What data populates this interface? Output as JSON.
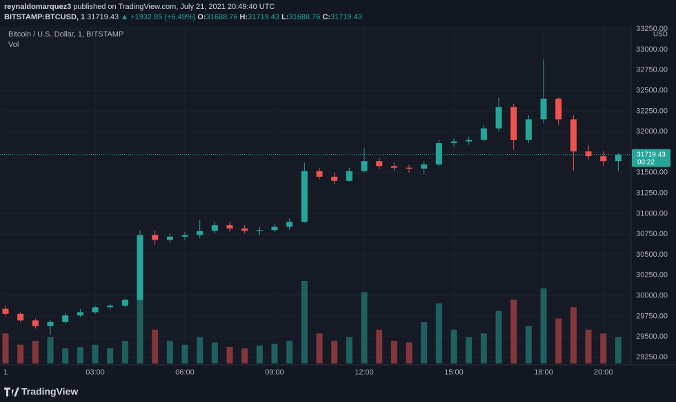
{
  "header": {
    "author": "reynaldomarquez3",
    "published": "published on TradingView.com, July 21, 2021 20:49:40 UTC",
    "logo": "TradingView"
  },
  "quote": {
    "symbol": "BITSTAMP:BTCUSD, 1",
    "price": "31719.43",
    "change": "▲ +1932.85 (+6.49%)",
    "fields": [
      {
        "label": "O:",
        "value": "31688.76"
      },
      {
        "label": "H:",
        "value": "31719.43"
      },
      {
        "label": "L:",
        "value": "31688.76"
      },
      {
        "label": "C:",
        "value": "31719.43"
      }
    ]
  },
  "chart_data": {
    "type": "candlestick",
    "title": "Bitcoin / U.S. Dollar, 1, BITSTAMP",
    "volume_label": "Vol",
    "y_unit": "USD",
    "last_price": 31719.43,
    "countdown": "00:22",
    "up_color": "#26a69a",
    "down_color": "#ef5350",
    "grid": true,
    "x": [
      0,
      0.5,
      1,
      1.5,
      2,
      2.5,
      3,
      3.5,
      4,
      4.5,
      5,
      5.5,
      6,
      6.5,
      7,
      7.5,
      8,
      8.5,
      9,
      9.5,
      10,
      10.5,
      11,
      11.5,
      12,
      12.5,
      13,
      13.5,
      14,
      14.5,
      15,
      15.5,
      16,
      16.5,
      17,
      17.5,
      18,
      18.5,
      19,
      19.5,
      20,
      20.5
    ],
    "open": [
      29840,
      29780,
      29700,
      29630,
      29680,
      29760,
      29800,
      29860,
      29880,
      29950,
      30740,
      30680,
      30720,
      30740,
      30790,
      30860,
      30820,
      30790,
      30800,
      30840,
      30900,
      31520,
      31450,
      31400,
      31520,
      31640,
      31580,
      31560,
      31550,
      31600,
      31860,
      31880,
      31900,
      32040,
      32300,
      31900,
      32150,
      32400,
      32150,
      31760,
      31700,
      31640
    ],
    "high": [
      29880,
      29800,
      29720,
      29700,
      29790,
      29840,
      29880,
      29900,
      29960,
      30800,
      30800,
      30760,
      30780,
      30920,
      30900,
      30900,
      30860,
      30840,
      30870,
      30940,
      31620,
      31560,
      31500,
      31560,
      31800,
      31680,
      31620,
      31600,
      31640,
      31900,
      31920,
      31940,
      32080,
      32420,
      32340,
      32200,
      32880,
      32420,
      32200,
      31840,
      31760,
      31740
    ],
    "low": [
      29760,
      29680,
      29600,
      29520,
      29660,
      29740,
      29780,
      29830,
      29860,
      29940,
      30620,
      30650,
      30680,
      30700,
      30760,
      30780,
      30760,
      30740,
      30780,
      30800,
      30890,
      31420,
      31360,
      31390,
      31500,
      31540,
      31520,
      31500,
      31480,
      31580,
      31820,
      31840,
      31880,
      32000,
      31780,
      31860,
      32100,
      32080,
      31520,
      31660,
      31580,
      31520
    ],
    "close": [
      29780,
      29700,
      29630,
      29680,
      29760,
      29800,
      29860,
      29880,
      29950,
      30740,
      30680,
      30720,
      30740,
      30790,
      30860,
      30820,
      30790,
      30800,
      30840,
      30900,
      31520,
      31450,
      31400,
      31520,
      31640,
      31580,
      31560,
      31550,
      31600,
      31860,
      31880,
      31900,
      32040,
      32300,
      31900,
      32150,
      32400,
      32150,
      31760,
      31700,
      31640,
      31719.43
    ],
    "volume": [
      40,
      25,
      30,
      35,
      20,
      22,
      25,
      20,
      30,
      90,
      45,
      30,
      25,
      35,
      28,
      22,
      20,
      24,
      26,
      30,
      110,
      40,
      30,
      35,
      95,
      45,
      30,
      28,
      55,
      80,
      45,
      35,
      40,
      70,
      85,
      50,
      100,
      60,
      75,
      45,
      40,
      35
    ],
    "xlim": [
      -0.185,
      20.93
    ],
    "ylim": [
      29158,
      33294
    ],
    "xticks": [
      {
        "value": 0,
        "label": "1"
      },
      {
        "value": 3,
        "label": "03:00"
      },
      {
        "value": 6,
        "label": "06:00"
      },
      {
        "value": 9,
        "label": "09:00"
      },
      {
        "value": 12,
        "label": "12:00"
      },
      {
        "value": 15,
        "label": "15:00"
      },
      {
        "value": 18,
        "label": "18:00"
      },
      {
        "value": 20,
        "label": "20:00"
      }
    ],
    "yticks": [
      {
        "value": 29250,
        "label": "29250.00"
      },
      {
        "value": 29500,
        "label": "29500.00"
      },
      {
        "value": 29750,
        "label": "29750.00"
      },
      {
        "value": 30000,
        "label": "30000.00"
      },
      {
        "value": 30250,
        "label": "30250.00"
      },
      {
        "value": 30500,
        "label": "30500.00"
      },
      {
        "value": 30750,
        "label": "30750.00"
      },
      {
        "value": 31000,
        "label": "31000.00"
      },
      {
        "value": 31250,
        "label": "31250.00"
      },
      {
        "value": 31500,
        "label": "31500.00"
      },
      {
        "value": 31750,
        "label": "31750.00"
      },
      {
        "value": 32000,
        "label": "32000.00"
      },
      {
        "value": 32250,
        "label": "32250.00"
      },
      {
        "value": 32500,
        "label": "32500.00"
      },
      {
        "value": 32750,
        "label": "32750.00"
      },
      {
        "value": 33000,
        "label": "33000.00"
      },
      {
        "value": 33250,
        "label": "33250.00"
      }
    ]
  }
}
